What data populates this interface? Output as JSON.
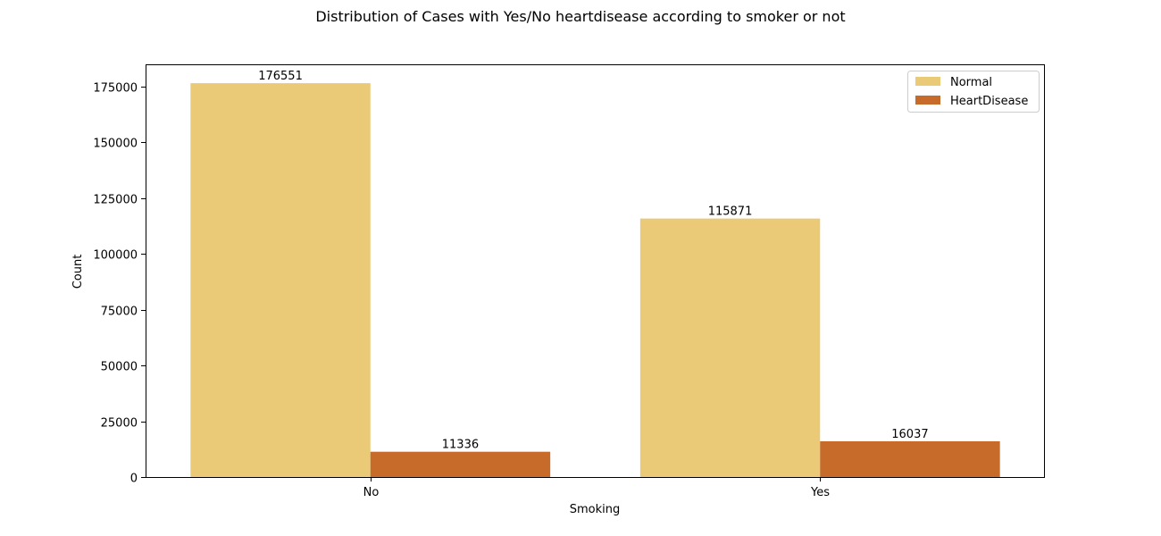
{
  "chart_data": {
    "type": "bar",
    "title": "Distribution of Cases with Yes/No heartdisease according to smoker or not",
    "xlabel": "Smoking",
    "ylabel": "Count",
    "categories": [
      "No",
      "Yes"
    ],
    "series": [
      {
        "name": "Normal",
        "values": [
          176551,
          115871
        ],
        "color": "#EAC977"
      },
      {
        "name": "HeartDisease",
        "values": [
          11336,
          16037
        ],
        "color": "#C66B29"
      }
    ],
    "ylim": [
      0,
      185000
    ],
    "yticks": [
      0,
      25000,
      50000,
      75000,
      100000,
      125000,
      150000,
      175000
    ],
    "legend_position": "top-right",
    "grid": false
  }
}
